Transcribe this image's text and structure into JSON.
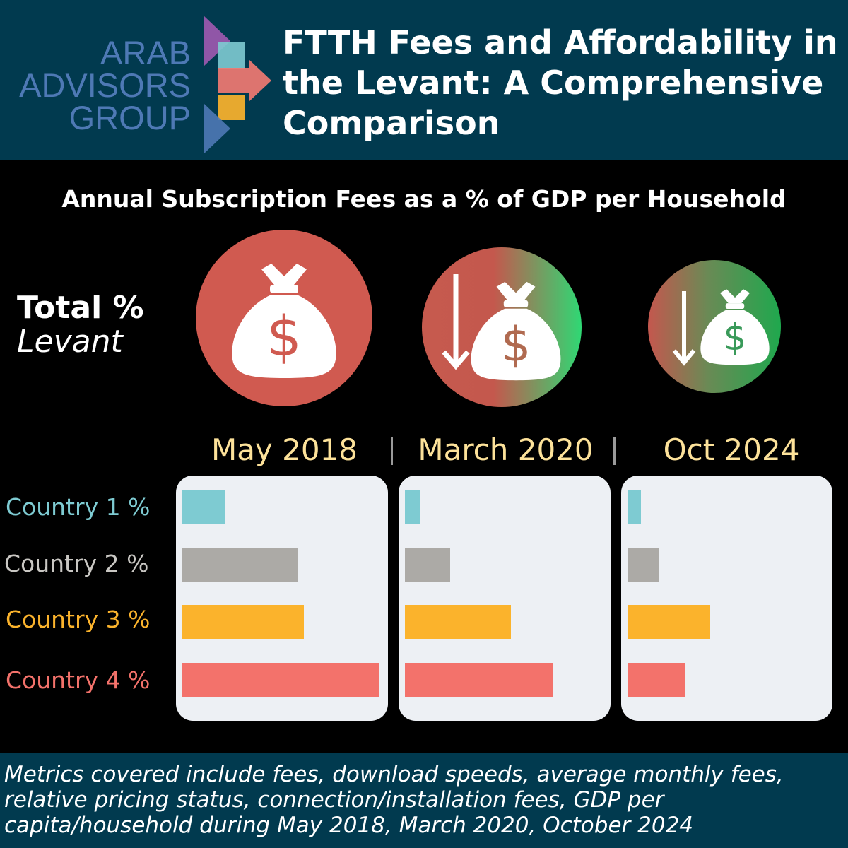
{
  "header": {
    "logo_lines": [
      "ARAB",
      "ADVISORS",
      "GROUP"
    ],
    "title": "FTTH Fees and Affordability in the Levant: A Comprehensive Comparison"
  },
  "colors": {
    "header_bg": "#013a4f",
    "circle_red": "#d05a50",
    "circle_green": "#2ecc71",
    "panel_bg": "#edf0f4",
    "period_text": "#fde29a"
  },
  "total_label": {
    "line1": "Total %",
    "line2": "Levant"
  },
  "icons": [
    "money-bag-icon",
    "down-arrow-icon"
  ],
  "chart_data": {
    "type": "bar",
    "orientation": "horizontal",
    "title": "Annual Subscription Fees as a % of GDP per Household",
    "periods": [
      "May 2018",
      "March 2020",
      "Oct 2024"
    ],
    "categories": [
      "Country 1 %",
      "Country 2 %",
      "Country 3 %",
      "Country 4 %"
    ],
    "category_colors": [
      "#7ecbd2",
      "#acaaa6",
      "#fbb32c",
      "#f3726b"
    ],
    "series": [
      {
        "name": "May 2018",
        "values": [
          0.22,
          0.59,
          0.62,
          1.0
        ]
      },
      {
        "name": "March 2020",
        "values": [
          0.08,
          0.23,
          0.54,
          0.75
        ]
      },
      {
        "name": "Oct 2024",
        "values": [
          0.07,
          0.16,
          0.42,
          0.29
        ]
      }
    ],
    "value_scale": "relative (no axis values shown)",
    "total_levant_relative": [
      1.0,
      0.91,
      0.76
    ]
  },
  "footer": {
    "text": "Metrics covered include fees, download speeds, average monthly fees, relative pricing status, connection/installation fees, GDP per capita/household during May 2018, March 2020, October 2024"
  }
}
